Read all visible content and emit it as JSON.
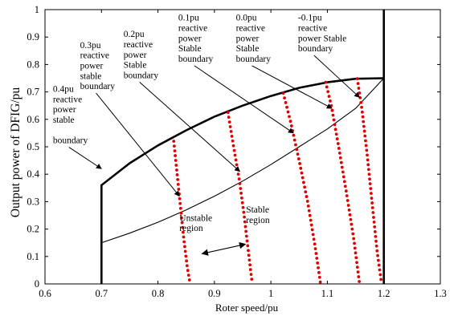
{
  "chart_data": {
    "type": "line",
    "title": "",
    "xlabel": "Roter speed/pu",
    "ylabel": "Output power of DFIG/pu",
    "xlim": [
      0.6,
      1.3
    ],
    "ylim": [
      0,
      1
    ],
    "xticks": [
      "0.6",
      "0.7",
      "0.8",
      "0.9",
      "1",
      "1.1",
      "1.2",
      "1.3"
    ],
    "yticks": [
      "0",
      "0.1",
      "0.2",
      "0.3",
      "0.4",
      "0.5",
      "0.6",
      "0.7",
      "0.8",
      "0.9",
      "1"
    ],
    "grid": false,
    "legend": "none",
    "series": [
      {
        "role": "upper-limit",
        "style": "thick-solid",
        "color": "#000000",
        "x": [
          0.7,
          0.7,
          0.75,
          0.8,
          0.85,
          0.9,
          0.95,
          1.0,
          1.05,
          1.1,
          1.15,
          1.2
        ],
        "y": [
          0.0,
          0.36,
          0.44,
          0.505,
          0.56,
          0.61,
          0.65,
          0.685,
          0.715,
          0.735,
          0.748,
          0.75
        ]
      },
      {
        "role": "lower-curve",
        "style": "thin-solid",
        "color": "#000000",
        "x": [
          0.7,
          0.75,
          0.8,
          0.85,
          0.9,
          0.95,
          1.0,
          1.05,
          1.1,
          1.15,
          1.2
        ],
        "y": [
          0.15,
          0.185,
          0.225,
          0.27,
          0.32,
          0.375,
          0.435,
          0.5,
          0.565,
          0.64,
          0.75
        ]
      },
      {
        "role": "speed-limit",
        "style": "thick-solid",
        "color": "#000000",
        "x": [
          1.2,
          1.2
        ],
        "y": [
          0.0,
          1.0
        ]
      },
      {
        "role": "boundary-0.3pu",
        "style": "dotted",
        "color": "#e00000",
        "x": [
          0.828,
          0.834,
          0.84,
          0.846,
          0.852,
          0.857
        ],
        "y": [
          0.52,
          0.4,
          0.28,
          0.16,
          0.06,
          0.0
        ]
      },
      {
        "role": "boundary-0.2pu",
        "style": "dotted",
        "color": "#e00000",
        "x": [
          0.924,
          0.934,
          0.944,
          0.952,
          0.96,
          0.967
        ],
        "y": [
          0.625,
          0.5,
          0.38,
          0.26,
          0.12,
          0.0
        ]
      },
      {
        "role": "boundary-0.1pu",
        "style": "dotted",
        "color": "#e00000",
        "x": [
          1.022,
          1.035,
          1.05,
          1.065,
          1.078,
          1.088
        ],
        "y": [
          0.695,
          0.59,
          0.45,
          0.3,
          0.14,
          0.0
        ]
      },
      {
        "role": "boundary-0.0pu",
        "style": "dotted",
        "color": "#e00000",
        "x": [
          1.097,
          1.107,
          1.12,
          1.134,
          1.147,
          1.157
        ],
        "y": [
          0.735,
          0.65,
          0.5,
          0.33,
          0.16,
          0.0
        ]
      },
      {
        "role": "boundary--0.1pu",
        "style": "dotted",
        "color": "#e00000",
        "x": [
          1.153,
          1.161,
          1.17,
          1.179,
          1.188,
          1.196
        ],
        "y": [
          0.748,
          0.64,
          0.48,
          0.3,
          0.12,
          0.0
        ]
      }
    ],
    "annotations": [
      {
        "lines": [
          "0.4pu",
          "reactive",
          "power",
          "stable",
          "",
          "boundary"
        ],
        "at": [
          0.614,
          0.7
        ],
        "arrow_to": [
          0.7,
          0.42
        ]
      },
      {
        "lines": [
          "0.3pu",
          "reactive",
          "power",
          "stable",
          "boundary"
        ],
        "at": [
          0.662,
          0.86
        ],
        "arrow_to": [
          0.838,
          0.32
        ]
      },
      {
        "lines": [
          "0.2pu",
          "reactive",
          "power",
          "Stable",
          "boundary"
        ],
        "at": [
          0.739,
          0.9
        ],
        "arrow_to": [
          0.945,
          0.41
        ]
      },
      {
        "lines": [
          "0.1pu",
          "reactive",
          "power",
          "Stable",
          "boundary"
        ],
        "at": [
          0.836,
          0.96
        ],
        "arrow_to": [
          1.04,
          0.55
        ]
      },
      {
        "lines": [
          "0.0pu",
          "reactive",
          "power",
          "Stable",
          "boundary"
        ],
        "at": [
          0.938,
          0.96
        ],
        "arrow_to": [
          1.108,
          0.64
        ]
      },
      {
        "lines": [
          "-0.1pu",
          "reactive",
          "power Stable",
          "boundary"
        ],
        "at": [
          1.048,
          0.96
        ],
        "arrow_to": [
          1.157,
          0.68
        ]
      },
      {
        "lines": [
          "Unstable",
          "region"
        ],
        "at": [
          0.838,
          0.23
        ]
      },
      {
        "lines": [
          "Stable",
          "region"
        ],
        "at": [
          0.956,
          0.26
        ]
      }
    ],
    "double_arrow": {
      "from": [
        0.878,
        0.11
      ],
      "to": [
        0.955,
        0.145
      ]
    }
  }
}
